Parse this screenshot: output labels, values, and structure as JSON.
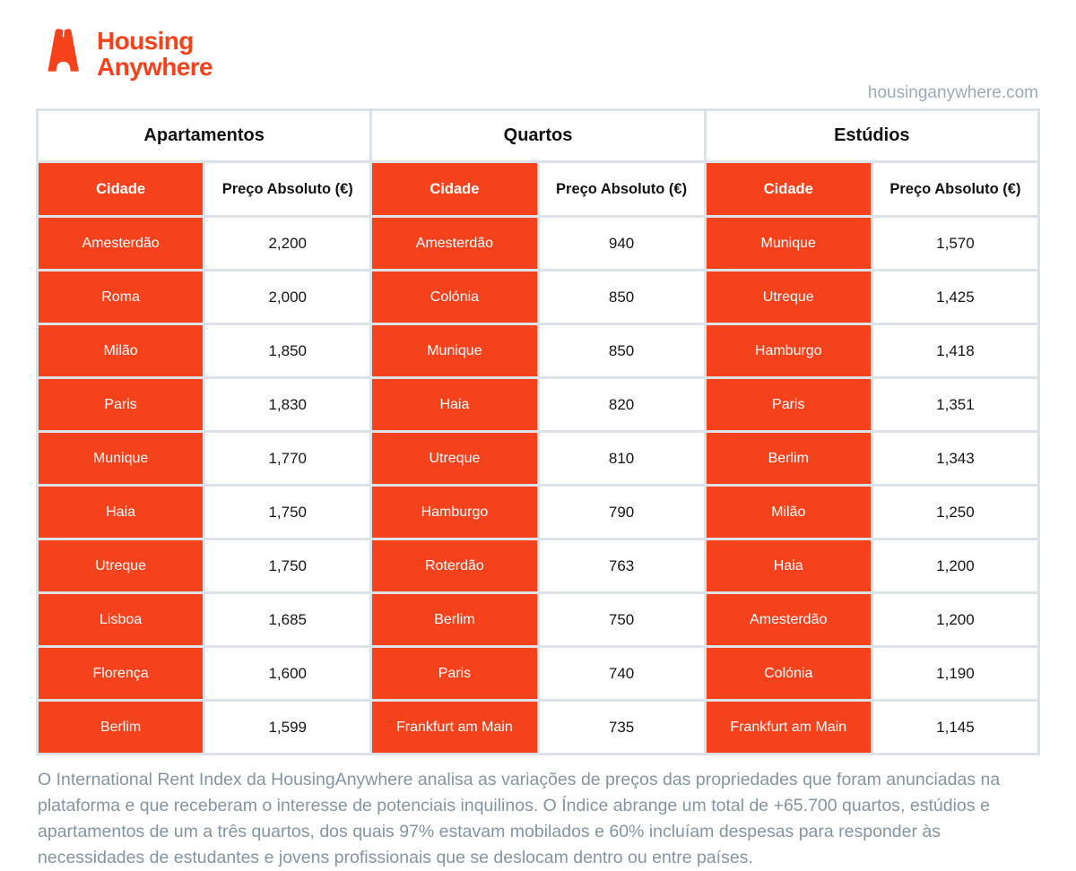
{
  "brand": {
    "logo_line1": "Housing",
    "logo_line2": "Anywhere",
    "website": "housinganywhere.com",
    "orange": "#f4421d"
  },
  "chart_data": {
    "type": "table",
    "tables": [
      {
        "title": "Apartamentos",
        "columns": [
          "Cidade",
          "Preço Absoluto (€)"
        ],
        "rows": [
          [
            "Amesterdão",
            "2,200"
          ],
          [
            "Roma",
            "2,000"
          ],
          [
            "Milão",
            "1,850"
          ],
          [
            "Paris",
            "1,830"
          ],
          [
            "Munique",
            "1,770"
          ],
          [
            "Haia",
            "1,750"
          ],
          [
            "Utreque",
            "1,750"
          ],
          [
            "Lisboa",
            "1,685"
          ],
          [
            "Florença",
            "1,600"
          ],
          [
            "Berlim",
            "1,599"
          ]
        ]
      },
      {
        "title": "Quartos",
        "columns": [
          "Cidade",
          "Preço Absoluto (€)"
        ],
        "rows": [
          [
            "Amesterdão",
            "940"
          ],
          [
            "Colónia",
            "850"
          ],
          [
            "Munique",
            "850"
          ],
          [
            "Haia",
            "820"
          ],
          [
            "Utreque",
            "810"
          ],
          [
            "Hamburgo",
            "790"
          ],
          [
            "Roterdão",
            "763"
          ],
          [
            "Berlim",
            "750"
          ],
          [
            "Paris",
            "740"
          ],
          [
            "Frankfurt am Main",
            "735"
          ]
        ]
      },
      {
        "title": "Estúdios",
        "columns": [
          "Cidade",
          "Preço Absoluto (€)"
        ],
        "rows": [
          [
            "Munique",
            "1,570"
          ],
          [
            "Utreque",
            "1,425"
          ],
          [
            "Hamburgo",
            "1,418"
          ],
          [
            "Paris",
            "1,351"
          ],
          [
            "Berlim",
            "1,343"
          ],
          [
            "Milão",
            "1,250"
          ],
          [
            "Haia",
            "1,200"
          ],
          [
            "Amesterdão",
            "1,200"
          ],
          [
            "Colónia",
            "1,190"
          ],
          [
            "Frankfurt am Main",
            "1,145"
          ]
        ]
      }
    ]
  },
  "footer": {
    "text": "O International Rent Index da HousingAnywhere analisa as variações de preços das propriedades que foram anunciadas na plataforma e que receberam o interesse de potenciais inquilinos. O Índice abrange um total de +65.700 quartos, estúdios e apartamentos de um a três quartos, dos quais 97% estavam mobilados e 60% incluíam despesas para responder às necessidades de estudantes e jovens profissionais que se deslocam dentro ou entre países."
  }
}
